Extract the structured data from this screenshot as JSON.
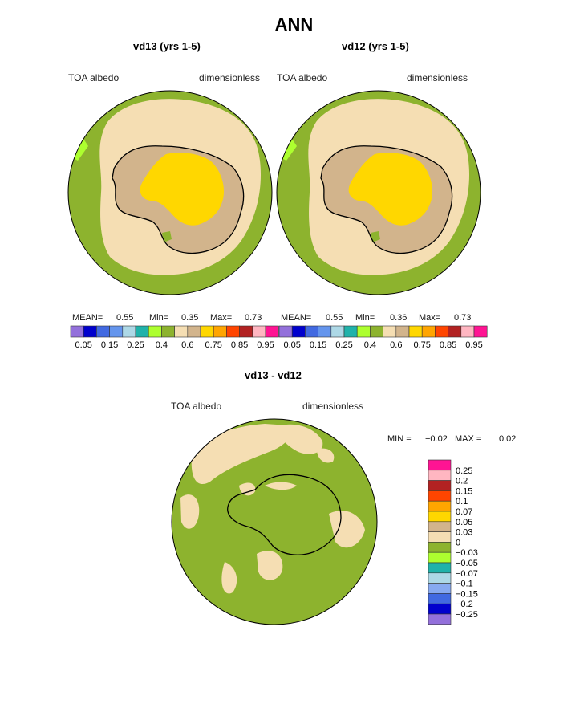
{
  "title": "ANN",
  "panels": [
    {
      "title": "vd13 (yrs 1-5)",
      "variable": "TOA albedo",
      "units": "dimensionless",
      "stats": {
        "mean_label": "MEAN=",
        "mean": "0.55",
        "min_label": "Min=",
        "min": "0.35",
        "max_label": "Max=",
        "max": "0.73"
      }
    },
    {
      "title": "vd12 (yrs 1-5)",
      "variable": "TOA albedo",
      "units": "dimensionless",
      "stats": {
        "mean_label": "MEAN=",
        "mean": "0.55",
        "min_label": "Min=",
        "min": "0.36",
        "max_label": "Max=",
        "max": "0.73"
      }
    }
  ],
  "colorbar": {
    "colors": [
      "#9370db",
      "#0000cd",
      "#4169e1",
      "#6495ed",
      "#add8e6",
      "#20b2aa",
      "#adff2f",
      "#8db32e",
      "#f5deb3",
      "#d2b48c",
      "#ffd700",
      "#ffa500",
      "#ff4500",
      "#b22222",
      "#ffb6c1",
      "#ff1493"
    ],
    "tick_labels": [
      "0.05",
      "0.15",
      "0.25",
      "0.4",
      "0.6",
      "0.75",
      "0.85",
      "0.95"
    ]
  },
  "difference": {
    "title": "vd13 - vd12",
    "variable": "TOA albedo",
    "units": "dimensionless",
    "min_label": "MIN =",
    "min": "−0.02",
    "max_label": "MAX =",
    "max": "0.02",
    "legend_colors": [
      "#ff1493",
      "#ffb6c1",
      "#b22222",
      "#ff4500",
      "#ffa500",
      "#ffd700",
      "#d2b48c",
      "#f5deb3",
      "#8db32e",
      "#adff2f",
      "#20b2aa",
      "#add8e6",
      "#87a9f0",
      "#4169e1",
      "#0000cd",
      "#9370db"
    ],
    "legend_labels": [
      "0.25",
      "0.2",
      "0.15",
      "0.1",
      "0.07",
      "0.05",
      "0.03",
      "0",
      "−0.03",
      "−0.05",
      "−0.07",
      "−0.1",
      "−0.15",
      "−0.2",
      "−0.25"
    ]
  }
}
